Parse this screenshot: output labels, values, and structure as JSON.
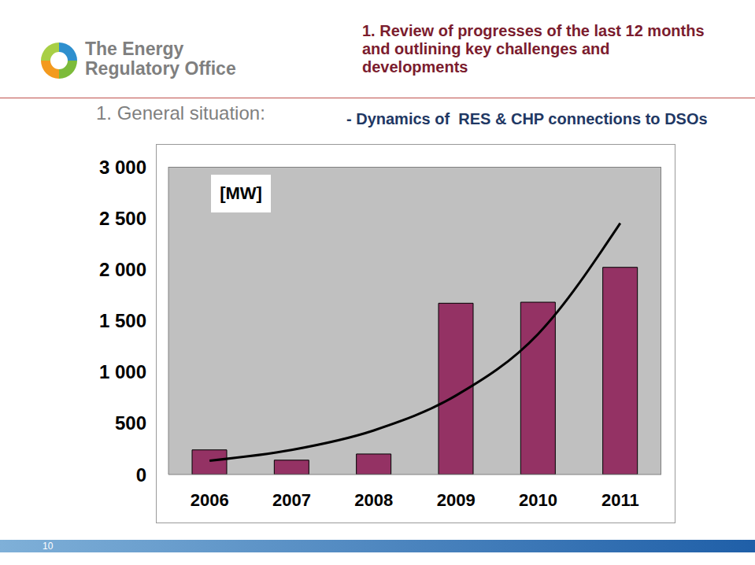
{
  "logo": [
    "The Energy",
    "Regulatory Office"
  ],
  "header": [
    "1. Review of progresses of the last 12 months",
    "and outlining key challenges and",
    "developments"
  ],
  "section": "1. General situation:",
  "page": 10,
  "chart_data": {
    "type": "bar",
    "title": "- Dynamics of  RES & CHP connections to DSOs",
    "ylabel": "[MW]",
    "categories": [
      "2006",
      "2007",
      "2008",
      "2009",
      "2010",
      "2011"
    ],
    "series": [
      {
        "type": "bar",
        "color": "#943264",
        "values": [
          240,
          140,
          200,
          1670,
          1680,
          2020
        ]
      },
      {
        "type": "line",
        "color": "#000000",
        "values": [
          135,
          240,
          430,
          770,
          1370,
          2450
        ]
      }
    ],
    "ylim": [
      0,
      3000
    ],
    "yticks": [
      0,
      500,
      {
        "value": 1000,
        "label": "1 000"
      },
      {
        "value": 1500,
        "label": "1 500"
      },
      {
        "value": 2000,
        "label": "2 000"
      },
      {
        "value": 2500,
        "label": "2 500"
      },
      {
        "value": 3000,
        "label": "3 000"
      }
    ],
    "grid": false
  }
}
